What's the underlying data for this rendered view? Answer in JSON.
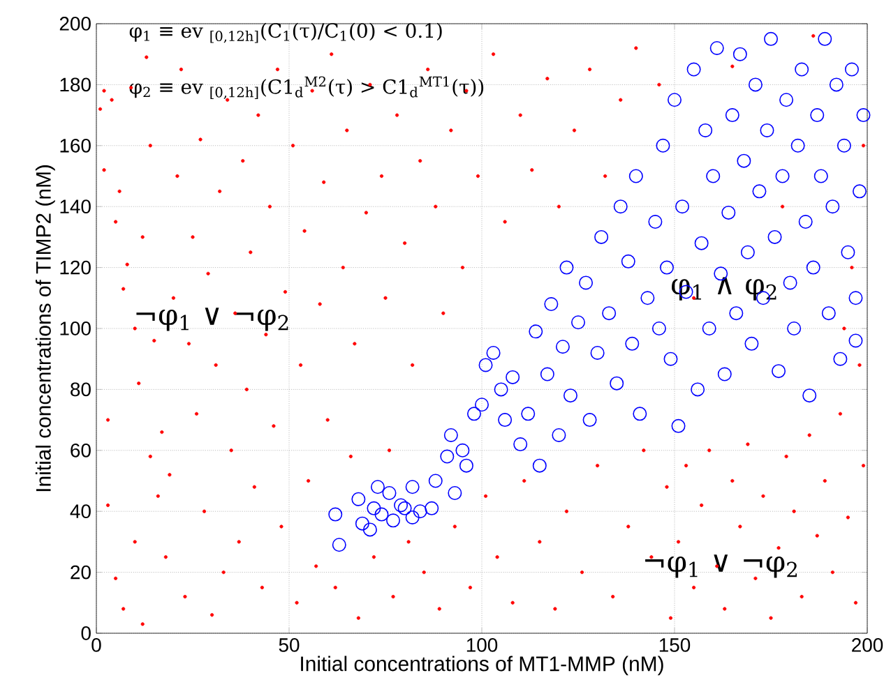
{
  "chart_data": {
    "type": "scatter",
    "xlabel": "Initial concentrations of MT1-MMP (nM)",
    "ylabel": "Initial concentrations of TIMP2 (nM)",
    "xlim": [
      0,
      200
    ],
    "ylim": [
      0,
      200
    ],
    "xticks": [
      0,
      50,
      100,
      150,
      200
    ],
    "yticks": [
      0,
      20,
      40,
      60,
      80,
      100,
      120,
      140,
      160,
      180,
      200
    ],
    "grid": true,
    "marker": "circle",
    "annotations": [
      "φ$_{1}$ ≡ ev $_{[0,12h]}$(C$_{1}$(τ)/C$_{1}$(0) < 0.1)",
      "φ$_{2}$ ≡ ev $_{[0,12h]}$(C1$_{d}$$^{M2}$(τ) > C1$_{d}$$^{MT1}$(τ))",
      "¬φ$_{1}$ ∨ ¬φ$_{2}$",
      "φ$_{1}$ ∧ φ$_{2}$",
      "¬φ$_{1}$ ∨ ¬φ$_{2}$"
    ],
    "series": [
      {
        "color": "#0000ff",
        "x": [
          62,
          63,
          68,
          69,
          71,
          72,
          73,
          74,
          76,
          77,
          79,
          80,
          82,
          82,
          84,
          87,
          88,
          91,
          93,
          92,
          95,
          96,
          98,
          100,
          101,
          103,
          105,
          106,
          108,
          110,
          112,
          114,
          115,
          117,
          118,
          120,
          121,
          122,
          123,
          125,
          127,
          128,
          130,
          131,
          133,
          135,
          136,
          138,
          139,
          140,
          141,
          143,
          145,
          146,
          147,
          148,
          149,
          150,
          151,
          152,
          153,
          155,
          156,
          157,
          158,
          159,
          160,
          161,
          162,
          163,
          164,
          165,
          166,
          167,
          168,
          169,
          170,
          171,
          172,
          173,
          174,
          175,
          176,
          177,
          178,
          179,
          180,
          181,
          182,
          183,
          184,
          185,
          186,
          187,
          188,
          189,
          190,
          191,
          192,
          193,
          194,
          195,
          196,
          197,
          198,
          199,
          197
        ],
        "values": [
          39,
          29,
          44,
          36,
          34,
          41,
          48,
          39,
          46,
          37,
          42,
          41,
          48,
          38,
          40,
          41,
          50,
          58,
          46,
          65,
          60,
          55,
          72,
          75,
          88,
          92,
          80,
          70,
          84,
          62,
          72,
          99,
          55,
          85,
          108,
          65,
          94,
          120,
          78,
          102,
          115,
          70,
          92,
          130,
          105,
          82,
          140,
          122,
          95,
          150,
          72,
          110,
          135,
          100,
          160,
          120,
          90,
          175,
          68,
          140,
          112,
          185,
          80,
          128,
          165,
          100,
          150,
          192,
          118,
          85,
          138,
          170,
          105,
          190,
          155,
          125,
          95,
          180,
          145,
          110,
          165,
          195,
          130,
          86,
          150,
          175,
          115,
          100,
          160,
          185,
          135,
          78,
          120,
          170,
          150,
          195,
          105,
          140,
          180,
          90,
          160,
          125,
          185,
          110,
          145,
          170,
          96
        ]
      },
      {
        "color": "#ff0000",
        "x": [
          1,
          2,
          4,
          3,
          2,
          5,
          6,
          7,
          8,
          9,
          10,
          11,
          12,
          13,
          14,
          15,
          16,
          17,
          18,
          19,
          3,
          5,
          7,
          10,
          12,
          14,
          20,
          21,
          22,
          23,
          24,
          25,
          26,
          27,
          28,
          29,
          30,
          31,
          32,
          33,
          34,
          35,
          36,
          37,
          38,
          39,
          40,
          41,
          42,
          43,
          44,
          45,
          46,
          47,
          48,
          49,
          51,
          52,
          53,
          54,
          55,
          56,
          57,
          58,
          59,
          60,
          61,
          62,
          64,
          65,
          66,
          67,
          68,
          70,
          71,
          72,
          74,
          75,
          76,
          77,
          78,
          80,
          81,
          82,
          84,
          85,
          86,
          88,
          89,
          90,
          92,
          93,
          95,
          96,
          97,
          99,
          101,
          103,
          104,
          106,
          108,
          110,
          111,
          113,
          115,
          117,
          119,
          120,
          122,
          124,
          126,
          128,
          130,
          132,
          134,
          136,
          138,
          140,
          142,
          144,
          146,
          148,
          149,
          151,
          153,
          155,
          157,
          159,
          161,
          163,
          165,
          167,
          169,
          171,
          173,
          175,
          177,
          179,
          181,
          183,
          185,
          187,
          189,
          191,
          193,
          195,
          197,
          199,
          198,
          196,
          199,
          194,
          186,
          178,
          165,
          155
        ],
        "values": [
          172,
          178,
          175,
          70,
          152,
          135,
          145,
          113,
          121,
          179,
          100,
          82,
          130,
          189,
          160,
          96,
          45,
          66,
          25,
          52,
          42,
          18,
          8,
          30,
          3,
          58,
          110,
          150,
          185,
          12,
          95,
          130,
          72,
          162,
          40,
          118,
          6,
          88,
          145,
          20,
          175,
          60,
          105,
          30,
          155,
          80,
          125,
          48,
          170,
          15,
          98,
          140,
          68,
          185,
          35,
          112,
          160,
          10,
          88,
          132,
          50,
          178,
          22,
          108,
          148,
          70,
          190,
          15,
          120,
          165,
          58,
          95,
          5,
          138,
          180,
          25,
          150,
          110,
          60,
          12,
          170,
          128,
          30,
          88,
          155,
          20,
          185,
          140,
          8,
          105,
          165,
          35,
          120,
          178,
          15,
          150,
          45,
          190,
          25,
          135,
          10,
          170,
          50,
          152,
          30,
          182,
          8,
          140,
          40,
          165,
          20,
          185,
          55,
          150,
          12,
          175,
          35,
          192,
          60,
          25,
          180,
          48,
          5,
          30,
          55,
          15,
          42,
          60,
          22,
          8,
          50,
          35,
          62,
          18,
          45,
          5,
          28,
          58,
          40,
          12,
          65,
          32,
          50,
          20,
          72,
          38,
          10,
          55,
          88,
          120,
          160,
          100,
          196,
          140,
          186,
          110
        ]
      }
    ]
  }
}
